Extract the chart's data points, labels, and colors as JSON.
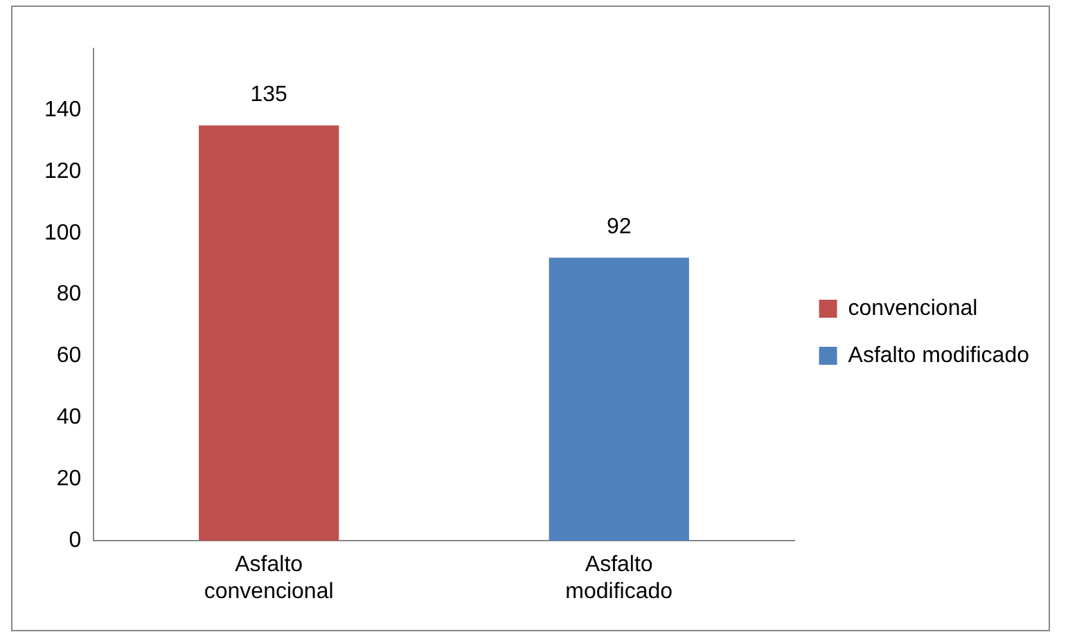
{
  "chart_data": {
    "type": "bar",
    "categories": [
      "Asfalto convencional",
      "Asfalto modificado"
    ],
    "series": [
      {
        "name": "convencional",
        "color": "#c0504d",
        "values": [
          135,
          null
        ]
      },
      {
        "name": "Asfalto modificado",
        "color": "#4f81bd",
        "values": [
          null,
          92
        ]
      }
    ],
    "ylim": [
      0,
      160
    ],
    "yticks": [
      0,
      20,
      40,
      60,
      80,
      100,
      120,
      140
    ],
    "grid": false,
    "legend": "right",
    "data_labels": true
  }
}
